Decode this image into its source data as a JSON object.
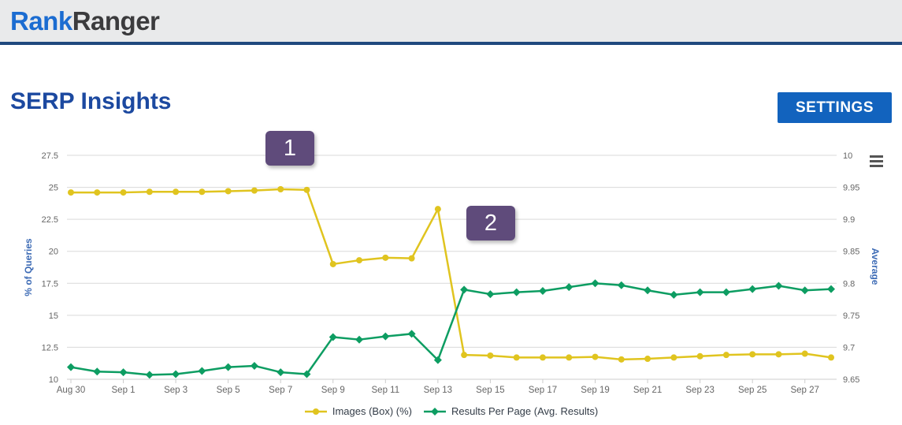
{
  "header": {
    "logo_part1": "Rank",
    "logo_part2": "Ranger"
  },
  "page": {
    "title": "SERP Insights",
    "settings_button": "SETTINGS"
  },
  "icons": {
    "chart_menu": "hamburger-menu-icon"
  },
  "colors": {
    "brand_blue": "#1b6cd1",
    "title_blue": "#1c49a0",
    "button_blue": "#1263be",
    "topbar_border": "#20497e",
    "annotation_purple": "#5f4b7b",
    "series_yellow": "#E0C41F",
    "series_green": "#0D9D62",
    "axis_title_blue": "#3d6bb5",
    "tick_text": "#666666",
    "grid_line": "#d9d9d9",
    "axis_line": "#cccccc"
  },
  "annotations": [
    {
      "label": "1",
      "anchor_date": "Sep 8"
    },
    {
      "label": "2",
      "anchor_date": "Sep 13"
    }
  ],
  "chart_data": {
    "type": "line",
    "title": "",
    "grid": "horizontal",
    "legend_position": "bottom-center",
    "x": [
      "Aug 30",
      "Aug 31",
      "Sep 1",
      "Sep 2",
      "Sep 3",
      "Sep 4",
      "Sep 5",
      "Sep 6",
      "Sep 7",
      "Sep 8",
      "Sep 9",
      "Sep 10",
      "Sep 11",
      "Sep 12",
      "Sep 13",
      "Sep 14",
      "Sep 15",
      "Sep 16",
      "Sep 17",
      "Sep 18",
      "Sep 19",
      "Sep 20",
      "Sep 21",
      "Sep 22",
      "Sep 23",
      "Sep 24",
      "Sep 25",
      "Sep 26",
      "Sep 27",
      "Sep 28"
    ],
    "x_tick_labels": [
      "Aug 30",
      "Sep 1",
      "Sep 3",
      "Sep 5",
      "Sep 7",
      "Sep 9",
      "Sep 11",
      "Sep 13",
      "Sep 15",
      "Sep 17",
      "Sep 19",
      "Sep 21",
      "Sep 23",
      "Sep 25",
      "Sep 27"
    ],
    "left_axis": {
      "title": "% of Queries",
      "min": 10,
      "max": 27.5,
      "ticks": [
        27.5,
        25,
        22.5,
        20,
        17.5,
        15,
        12.5,
        10
      ]
    },
    "right_axis": {
      "title": "Average",
      "min": 9.65,
      "max": 10,
      "ticks": [
        10,
        9.95,
        9.9,
        9.85,
        9.8,
        9.75,
        9.7,
        9.65
      ]
    },
    "series": [
      {
        "name": "Images (Box) (%)",
        "axis": "left",
        "color": "#E0C41F",
        "marker": "circle",
        "values": [
          24.6,
          24.6,
          24.6,
          24.65,
          24.65,
          24.65,
          24.7,
          24.75,
          24.85,
          24.8,
          19.0,
          19.3,
          19.5,
          19.45,
          23.3,
          11.9,
          11.85,
          11.7,
          11.7,
          11.7,
          11.75,
          11.55,
          11.6,
          11.7,
          11.8,
          11.9,
          11.95,
          11.95,
          12.0,
          11.7
        ]
      },
      {
        "name": "Results Per Page (Avg. Results)",
        "axis": "right",
        "color": "#0D9D62",
        "marker": "diamond",
        "values": [
          9.669,
          9.662,
          9.661,
          9.657,
          9.658,
          9.663,
          9.669,
          9.671,
          9.661,
          9.658,
          9.716,
          9.712,
          9.717,
          9.721,
          9.68,
          9.79,
          9.783,
          9.786,
          9.788,
          9.794,
          9.8,
          9.797,
          9.789,
          9.782,
          9.786,
          9.786,
          9.791,
          9.796,
          9.789,
          9.791
        ]
      }
    ]
  }
}
